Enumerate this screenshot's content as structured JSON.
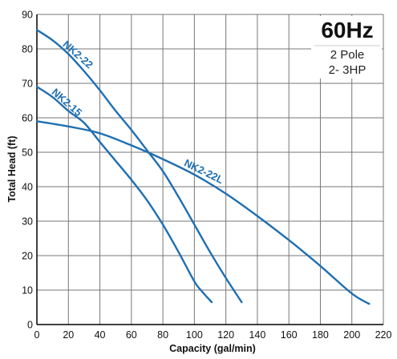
{
  "chart_data": {
    "type": "line",
    "title": "",
    "xlabel": "Capacity (gal/min)",
    "ylabel": "Total Head (ft)",
    "xlim": [
      0,
      220
    ],
    "ylim": [
      0,
      90
    ],
    "xticks": [
      0,
      20,
      40,
      60,
      80,
      100,
      120,
      140,
      160,
      180,
      200,
      220
    ],
    "yticks": [
      0,
      10,
      20,
      30,
      40,
      50,
      60,
      70,
      80,
      90
    ],
    "grid": true,
    "legend": {
      "title": "60Hz",
      "lines": [
        "2 Pole",
        "2- 3HP"
      ],
      "placement": "top-right"
    },
    "colors": {
      "curve": "#1f6fb2",
      "grid": "#777777",
      "axis": "#000000"
    },
    "series": [
      {
        "name": "NK2-22",
        "x": [
          0,
          10,
          20,
          30,
          40,
          50,
          60,
          70,
          80,
          90,
          100,
          110,
          120,
          130
        ],
        "y": [
          85.5,
          82.5,
          78.5,
          73.5,
          68,
          62,
          56.5,
          50.5,
          44.5,
          37,
          29,
          21,
          13.5,
          6.5
        ]
      },
      {
        "name": "NK2-15",
        "x": [
          0,
          10,
          20,
          30,
          40,
          50,
          60,
          70,
          80,
          90,
          100,
          105,
          111
        ],
        "y": [
          69,
          66,
          62,
          58.5,
          53,
          47.5,
          42,
          36,
          29,
          21,
          12.5,
          9.5,
          6.5
        ]
      },
      {
        "name": "NK2-22L",
        "x": [
          0,
          20,
          40,
          60,
          80,
          100,
          120,
          140,
          160,
          180,
          200,
          211
        ],
        "y": [
          59,
          57.5,
          55.5,
          52,
          48,
          43.5,
          38,
          31.5,
          24.5,
          17,
          9,
          6
        ]
      }
    ]
  }
}
